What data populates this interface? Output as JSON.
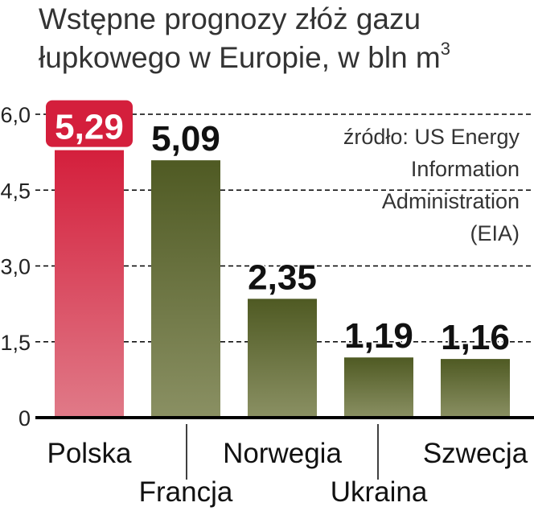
{
  "title": {
    "line1": "Wstępne prognozy złóż gazu",
    "line2": "łupkowego w Europie, w bln m",
    "superscript": "3"
  },
  "source": {
    "lines": [
      "źródło: US Energy",
      "Information",
      "Administration",
      "(EIA)"
    ]
  },
  "colors": {
    "highlight": "#d41f3c",
    "highlight_light": "#e07a88",
    "bar_dark": "#4f5a23",
    "bar_light": "#8a9063",
    "axis": "#000000",
    "grid": "#000000"
  },
  "chart_data": {
    "type": "bar",
    "title": "Wstępne prognozy złóż gazu łupkowego w Europie, w bln m3",
    "categories": [
      "Polska",
      "Francja",
      "Norwegia",
      "Ukraina",
      "Szwecja"
    ],
    "values": [
      5.29,
      5.09,
      2.35,
      1.19,
      1.16
    ],
    "value_labels": [
      "5,29",
      "5,09",
      "2,35",
      "1,19",
      "1,16"
    ],
    "highlight_index": 0,
    "ylim": [
      0,
      6.0
    ],
    "yticks": [
      0,
      1.5,
      3.0,
      4.5,
      6.0
    ],
    "ytick_labels": [
      "0",
      "1,5",
      "3,0",
      "4,5",
      "6,0"
    ],
    "grid": true,
    "xlabel": "",
    "ylabel": ""
  }
}
